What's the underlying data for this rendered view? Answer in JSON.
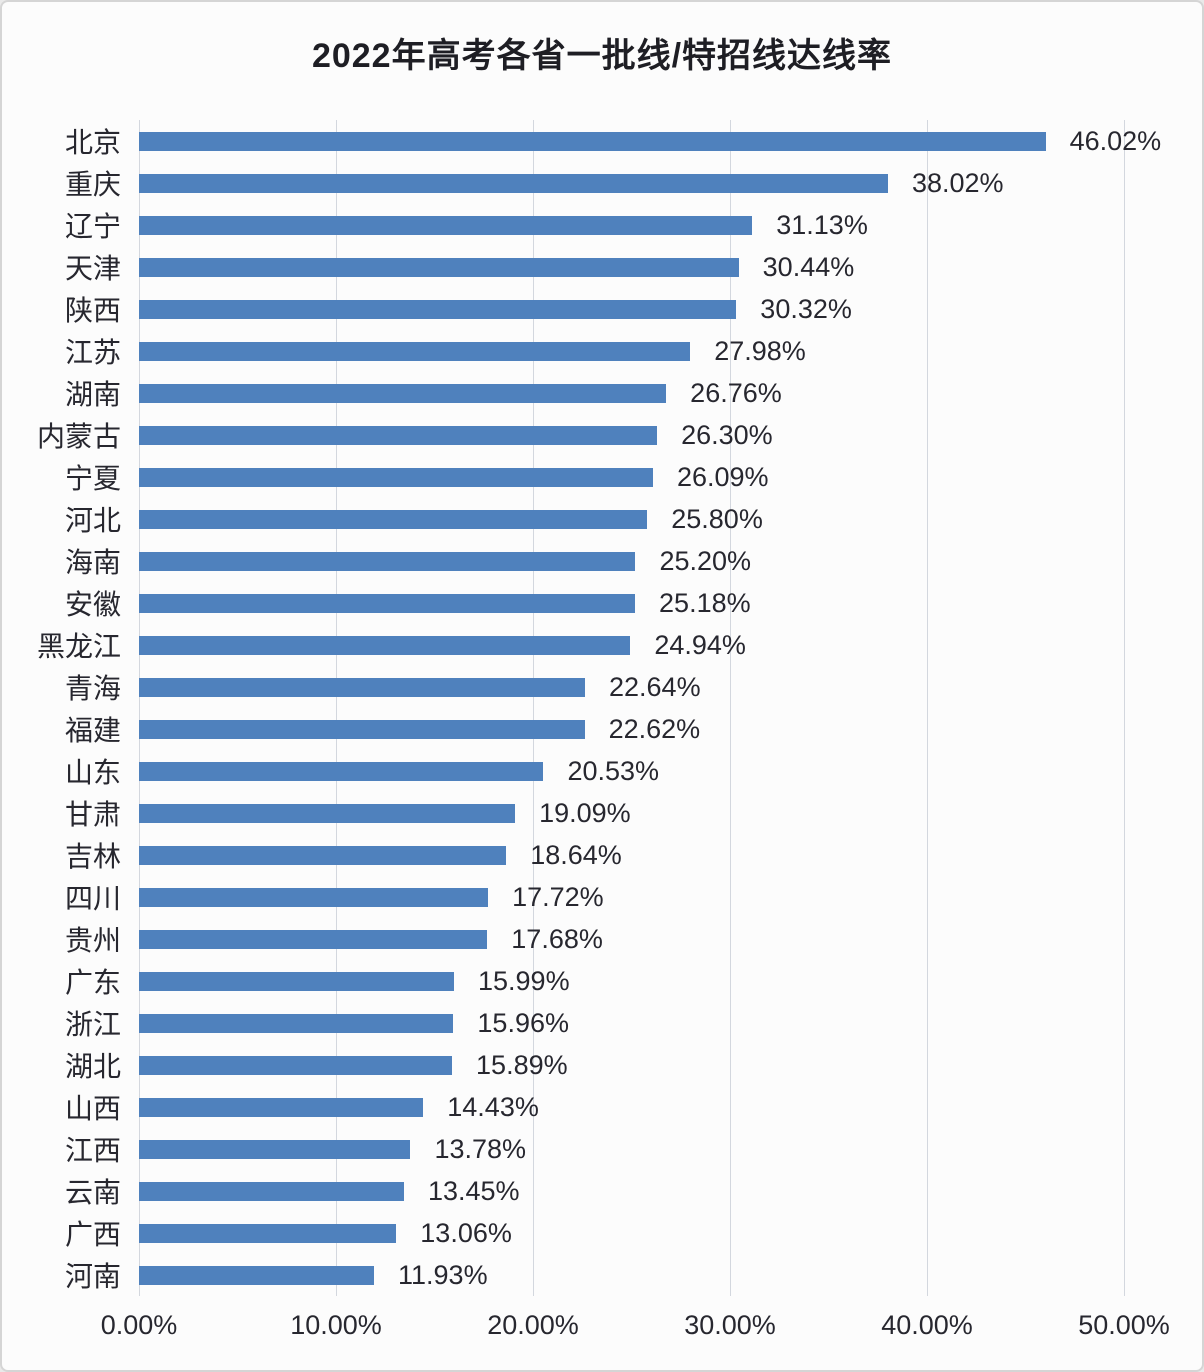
{
  "colors": {
    "bar": "#4F81BD",
    "gridline": "#D3D7DE",
    "text": "#27272F",
    "title_text": "#1E1E24",
    "background": "#FCFCFC",
    "border": "#D5D5D5"
  },
  "chart_data": {
    "type": "bar",
    "orientation": "horizontal",
    "title": "2022年高考各省一批线/特招线达线率",
    "categories": [
      "北京",
      "重庆",
      "辽宁",
      "天津",
      "陕西",
      "江苏",
      "湖南",
      "内蒙古",
      "宁夏",
      "河北",
      "海南",
      "安徽",
      "黑龙江",
      "青海",
      "福建",
      "山东",
      "甘肃",
      "吉林",
      "四川",
      "贵州",
      "广东",
      "浙江",
      "湖北",
      "山西",
      "江西",
      "云南",
      "广西",
      "河南"
    ],
    "values": [
      46.02,
      38.02,
      31.13,
      30.44,
      30.32,
      27.98,
      26.76,
      26.3,
      26.09,
      25.8,
      25.2,
      25.18,
      24.94,
      22.64,
      22.62,
      20.53,
      19.09,
      18.64,
      17.72,
      17.68,
      15.99,
      15.96,
      15.89,
      14.43,
      13.78,
      13.45,
      13.06,
      11.93
    ],
    "data_labels": [
      "46.02%",
      "38.02%",
      "31.13%",
      "30.44%",
      "30.32%",
      "27.98%",
      "26.76%",
      "26.30%",
      "26.09%",
      "25.80%",
      "25.20%",
      "25.18%",
      "24.94%",
      "22.64%",
      "22.62%",
      "20.53%",
      "19.09%",
      "18.64%",
      "17.72%",
      "17.68%",
      "15.99%",
      "15.96%",
      "15.89%",
      "14.43%",
      "13.78%",
      "13.45%",
      "13.06%",
      "11.93%"
    ],
    "xlabel": "",
    "ylabel": "",
    "x_axis": {
      "min": 0,
      "max": 50,
      "ticks": [
        "0.00%",
        "10.00%",
        "20.00%",
        "30.00%",
        "40.00%",
        "50.00%"
      ],
      "tick_values": [
        0,
        10,
        20,
        30,
        40,
        50
      ],
      "grid": true
    },
    "legend": "none"
  }
}
